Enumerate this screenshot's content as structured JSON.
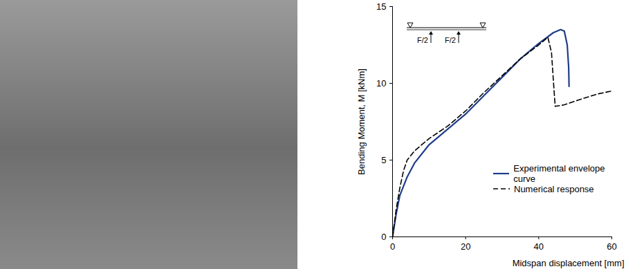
{
  "chart_data": {
    "type": "line",
    "xlabel": "Midspan displacement [mm]",
    "ylabel": "Bending Moment, M [kNm]",
    "xlim": [
      0,
      60
    ],
    "ylim": [
      0,
      15
    ],
    "xticks": [
      0,
      20,
      40,
      60
    ],
    "yticks": [
      0,
      5,
      10,
      15
    ],
    "grid": false,
    "legend": "lower right",
    "annotations": [
      "F/2",
      "F/2"
    ],
    "series": [
      {
        "name": "Experimental envelope curve",
        "color": "#1f3c88",
        "line_style": "solid",
        "x": [
          0,
          1,
          2,
          4,
          6,
          10,
          15,
          20,
          25,
          30,
          35,
          40,
          44,
          46,
          47,
          47.8,
          48.2,
          48.3
        ],
        "values": [
          0,
          1.5,
          2.7,
          3.9,
          4.8,
          6.0,
          7.0,
          8.0,
          9.2,
          10.4,
          11.6,
          12.6,
          13.3,
          13.5,
          13.4,
          12.5,
          11.0,
          9.8
        ]
      },
      {
        "name": "Numerical response",
        "color": "#000000",
        "line_style": "dashed",
        "x": [
          0,
          1,
          2,
          3,
          4,
          6,
          10,
          15,
          20,
          25,
          30,
          35,
          40,
          42.5,
          43.5,
          44,
          44.5,
          47,
          52,
          56,
          60
        ],
        "values": [
          0,
          1.8,
          3.2,
          4.3,
          5.0,
          5.6,
          6.4,
          7.2,
          8.2,
          9.4,
          10.5,
          11.6,
          12.5,
          13.0,
          12.0,
          10.2,
          8.5,
          8.6,
          9.0,
          9.3,
          9.5
        ]
      }
    ]
  }
}
